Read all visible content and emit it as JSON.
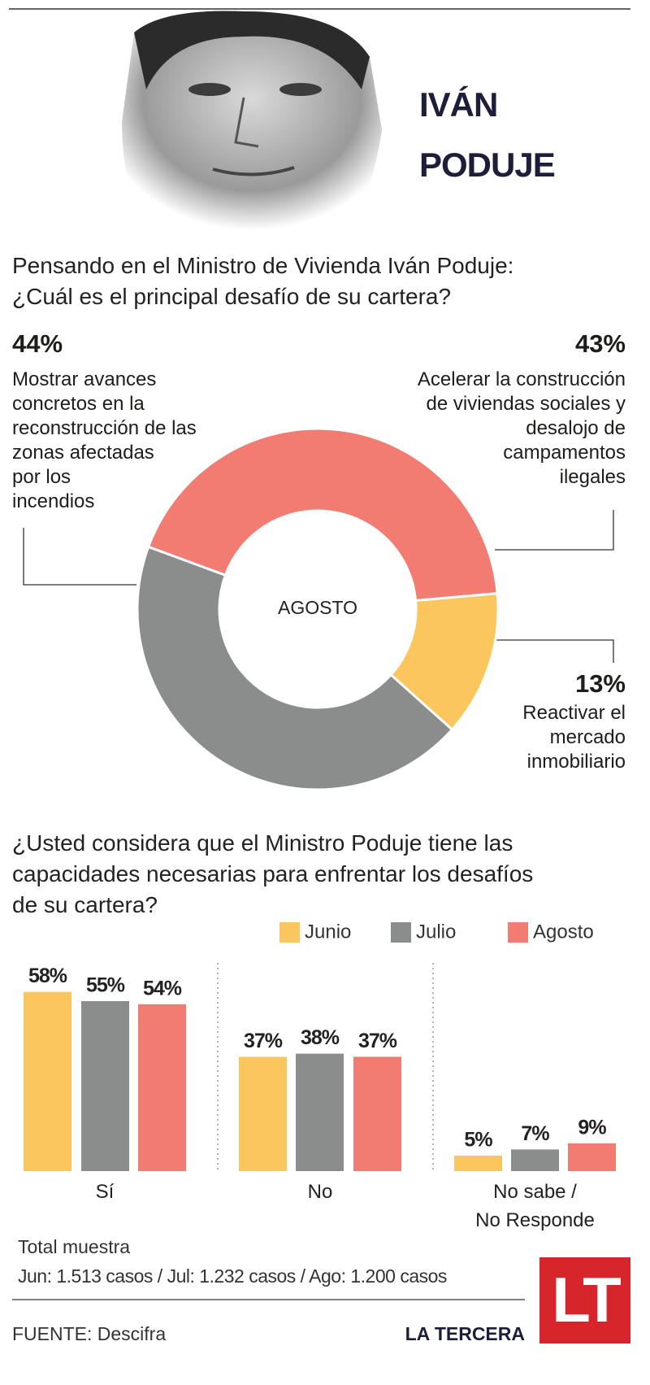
{
  "header": {
    "name": "IVÁN\nPODUJE"
  },
  "chart_data": [
    {
      "type": "pie",
      "title": "Pensando en el Ministro de Vivienda Iván Poduje:\n¿Cuál es el principal desafío de su cartera?",
      "center_label": "AGOSTO",
      "categories": [
        "Mostrar avances\nconcretos en la\nreconstrucción de las\nzonas afectadas\npor los\nincendios",
        "Acelerar la construcción\nde viviendas sociales y\ndesalojo de\ncampamentos\nilegales",
        "Reactivar el\nmercado\ninmobiliario"
      ],
      "values": [
        44,
        43,
        13
      ],
      "value_labels": [
        "44%",
        "43%",
        "13%"
      ],
      "colors": [
        "#8b8c8c",
        "#f27c72",
        "#fcc65e"
      ]
    },
    {
      "type": "bar",
      "title": "¿Usted considera que el Ministro Poduje tiene las\ncapacidades necesarias para enfrentar los desafíos\nde su cartera?",
      "categories": [
        "Sí",
        "No",
        "No sabe /\nNo Responde"
      ],
      "series": [
        {
          "name": "Junio",
          "color": "#fcc65e",
          "values": [
            58,
            37,
            5
          ],
          "value_labels": [
            "58%",
            "37%",
            "5%"
          ]
        },
        {
          "name": "Julio",
          "color": "#8b8c8c",
          "values": [
            55,
            38,
            7
          ],
          "value_labels": [
            "55%",
            "38%",
            "7%"
          ]
        },
        {
          "name": "Agosto",
          "color": "#f27c72",
          "values": [
            54,
            37,
            9
          ],
          "value_labels": [
            "54%",
            "37%",
            "9%"
          ]
        }
      ]
    }
  ],
  "footer": {
    "sample_title": "Total muestra",
    "sample": "Jun: 1.513 casos / Jul: 1.232 casos / Ago: 1.200 casos",
    "source": "FUENTE: Descifra",
    "brand": "LA TERCERA",
    "logo": "LT"
  }
}
